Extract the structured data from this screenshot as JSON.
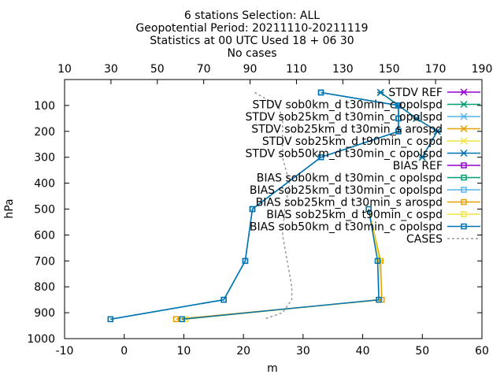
{
  "chart_data": {
    "type": "line",
    "title_lines": [
      "6 stations Selection: ALL",
      "Geopotential  Period: 20211110-20211119",
      "Statistics at 00 UTC  Used 18 + 06 30",
      "No cases"
    ],
    "xlabel": "m",
    "ylabel": "hPa",
    "xlim": [
      -10,
      60
    ],
    "x_ticks": [
      "-10",
      "0",
      "10",
      "20",
      "30",
      "40",
      "50",
      "60"
    ],
    "x2lim": [
      10,
      190
    ],
    "x2_ticks": [
      "10",
      "30",
      "50",
      "70",
      "90",
      "110",
      "130",
      "150",
      "170",
      "190"
    ],
    "ylim": [
      1000,
      0
    ],
    "y_ticks": [
      "100",
      "200",
      "300",
      "400",
      "500",
      "600",
      "700",
      "800",
      "900",
      "1000"
    ],
    "legend_position": "top-right",
    "levels": [
      50,
      100,
      150,
      200,
      300,
      500,
      700,
      850,
      925
    ],
    "series": [
      {
        "name": "STDV REF",
        "color": "#9400d3",
        "marker": "star",
        "values": [
          null,
          null,
          null,
          null,
          null,
          null,
          null,
          null,
          null
        ]
      },
      {
        "name": "STDV sob0km_d t30min_c opolspd",
        "color": "#009e73",
        "marker": "star",
        "values": [
          43,
          46,
          49,
          52.5,
          50,
          null,
          null,
          null,
          null
        ]
      },
      {
        "name": "STDV sob25km_d t30min_c opolspd",
        "color": "#56b4e9",
        "marker": "star",
        "values": [
          43,
          46,
          49,
          52.5,
          50,
          null,
          null,
          null,
          null
        ]
      },
      {
        "name": "STDV sob25km_d t30min_s arospd",
        "color": "#e69f00",
        "marker": "star",
        "values": [
          43,
          46,
          49,
          52.5,
          50,
          null,
          null,
          null,
          null
        ]
      },
      {
        "name": "STDV sob25km_d t90min_c ospd",
        "color": "#f0e442",
        "marker": "star",
        "values": [
          43,
          46,
          49,
          52.5,
          50,
          null,
          null,
          null,
          null
        ]
      },
      {
        "name": "STDV sob50km_d t30min_c opolspd",
        "color": "#0072b2",
        "marker": "star",
        "values": [
          43,
          46,
          49,
          52.5,
          50,
          null,
          null,
          null,
          null
        ]
      },
      {
        "name": "BIAS REF",
        "color": "#9400d3",
        "marker": "square",
        "values": [
          null,
          null,
          null,
          null,
          null,
          null,
          null,
          null,
          null
        ]
      },
      {
        "name": "BIAS sob0km_d t30min_c opolspd",
        "color": "#009e73",
        "marker": "square",
        "values": [
          33,
          46,
          46,
          46,
          33,
          21.5,
          20.3,
          16.7,
          -2.3
        ]
      },
      {
        "name": "BIAS sob25km_d t30min_c opolspd",
        "color": "#56b4e9",
        "marker": "square",
        "values": [
          33,
          46,
          46,
          46,
          33,
          21.5,
          20.3,
          16.7,
          -2.3
        ]
      },
      {
        "name": "BIAS sob25km_d t30min_s arospd",
        "color": "#e69f00",
        "marker": "square",
        "values": [
          null,
          null,
          null,
          null,
          null,
          41,
          43,
          43.2,
          8.7
        ]
      },
      {
        "name": "BIAS sob25km_d t90min_c ospd",
        "color": "#f0e442",
        "marker": "square",
        "values": [
          null,
          null,
          null,
          null,
          null,
          41,
          42.8,
          42.7,
          10.3
        ]
      },
      {
        "name": "BIAS sob50km_d t30min_c opolspd",
        "color": "#0072b2",
        "marker": "square",
        "values": [
          33,
          46,
          46,
          46,
          33,
          21.5,
          20.3,
          16.7,
          -2.3
        ]
      }
    ],
    "extra_series": [
      {
        "name": "BIAS sob50km_d t30min_c opolspd (lower branch)",
        "color": "#0072b2",
        "marker": "square",
        "levels": [
          500,
          700,
          850,
          925
        ],
        "values": [
          41,
          42.5,
          42.7,
          9.7
        ]
      }
    ],
    "cases_series": {
      "name": "CASES",
      "color": "#999999",
      "dash": true,
      "axis": "x2",
      "levels": [
        50,
        100,
        150,
        200,
        300,
        400,
        500,
        600,
        700,
        800,
        850,
        900,
        925
      ],
      "values": [
        92,
        102,
        104,
        104,
        104,
        107,
        105,
        104,
        106,
        108,
        108,
        104,
        96
      ]
    }
  }
}
